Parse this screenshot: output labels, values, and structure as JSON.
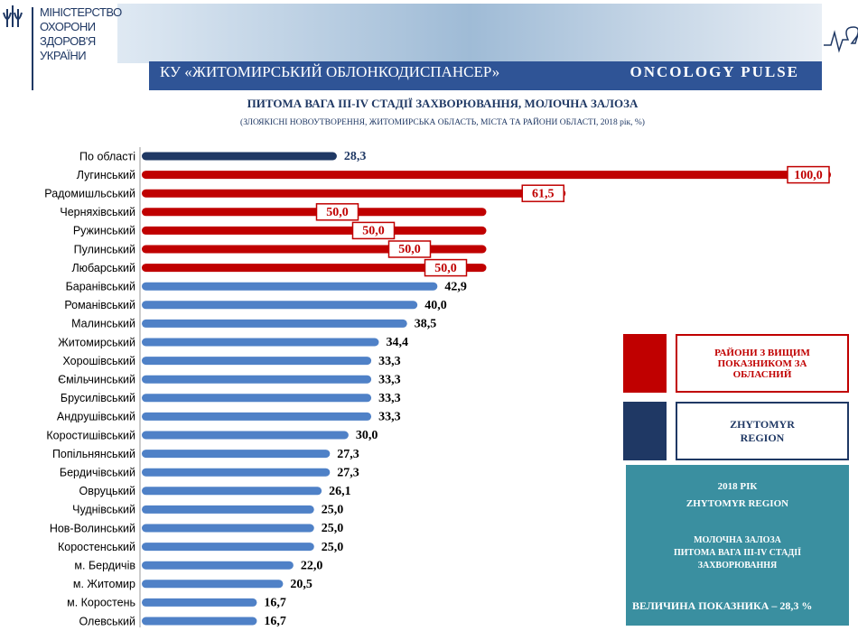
{
  "header": {
    "ministry": "МІНІСТЕРСТВО ОХОРОНИ ЗДОРОВ'Я УКРАЇНИ",
    "organization": "КУ «ЖИТОМИРСЬКИЙ ОБЛОНКОДИСПАНСЕР»",
    "brand": "ONCOLOGY PULSE"
  },
  "chart_data": {
    "type": "bar",
    "orientation": "horizontal",
    "title": "ПИТОМА ВАГА III-IV СТАДІЇ ЗАХВОРЮВАННЯ, МОЛОЧНА ЗАЛОЗА",
    "subtitle": "(ЗЛОЯКІСНІ НОВОУТВОРЕННЯ, ЖИТОМИРСЬКА ОБЛАСТЬ, МІСТА ТА РАЙОНИ ОБЛАСТІ, 2018 рік, %)",
    "categories": [
      "По області",
      "Лугинський",
      "Радомишльський",
      "Черняхівський",
      "Ружинський",
      "Пулинський",
      "Любарський",
      "Баранівський",
      "Романівський",
      "Малинський",
      "Житомирський",
      "Хорошівський",
      "Ємільчинський",
      "Брусилівський",
      "Андрушівський",
      "Коростишівський",
      "Попільнянський",
      "Бердичівський",
      "Овруцький",
      "Чуднівський",
      "Нов-Волинський",
      "Коростенський",
      "м. Бердичів",
      "м. Житомир",
      "м. Коростень",
      "Олевський"
    ],
    "values": [
      28.3,
      100,
      61.5,
      50,
      50,
      50,
      50,
      42.9,
      40,
      38.5,
      34.4,
      33.3,
      33.3,
      33.3,
      33.3,
      30,
      27.3,
      27.3,
      26.1,
      25,
      25,
      25,
      22,
      20.5,
      16.7,
      16.7
    ],
    "value_labels": [
      "28,3",
      "100,0",
      "61,5",
      "50,0",
      "50,0",
      "50,0",
      "50,0",
      "42,9",
      "40,0",
      "38,5",
      "34,4",
      "33,3",
      "33,3",
      "33,3",
      "33,3",
      "30,0",
      "27,3",
      "27,3",
      "26,1",
      "25,0",
      "25,0",
      "25,0",
      "22,0",
      "20,5",
      "16,7",
      "16,7"
    ],
    "colors": [
      "#1f3864",
      "#c00000",
      "#c00000",
      "#c00000",
      "#c00000",
      "#c00000",
      "#c00000",
      "#4f81c7",
      "#4f81c7",
      "#4f81c7",
      "#4f81c7",
      "#4f81c7",
      "#4f81c7",
      "#4f81c7",
      "#4f81c7",
      "#4f81c7",
      "#4f81c7",
      "#4f81c7",
      "#4f81c7",
      "#4f81c7",
      "#4f81c7",
      "#4f81c7",
      "#4f81c7",
      "#4f81c7",
      "#4f81c7",
      "#4f81c7"
    ],
    "xlim": [
      0,
      100
    ],
    "legend": [
      {
        "name": "РАЙОНИ З ВИЩИМ ПОКАЗНИКОМ ЗА ОБЛАСНИЙ",
        "color": "#c00000"
      },
      {
        "name": "ZHYTOMYR REGION",
        "color": "#1f3864"
      }
    ]
  },
  "info_box": {
    "lines": [
      "2018 РІК",
      "ZHYTOMYR REGION",
      "МОЛОЧНА ЗАЛОЗА",
      "ПИТОМА ВАГА III-IV СТАДІЇ ЗАХВОРЮВАННЯ",
      "ВЕЛИЧИНА ПОКАЗНИКА – 28,3 %"
    ]
  }
}
